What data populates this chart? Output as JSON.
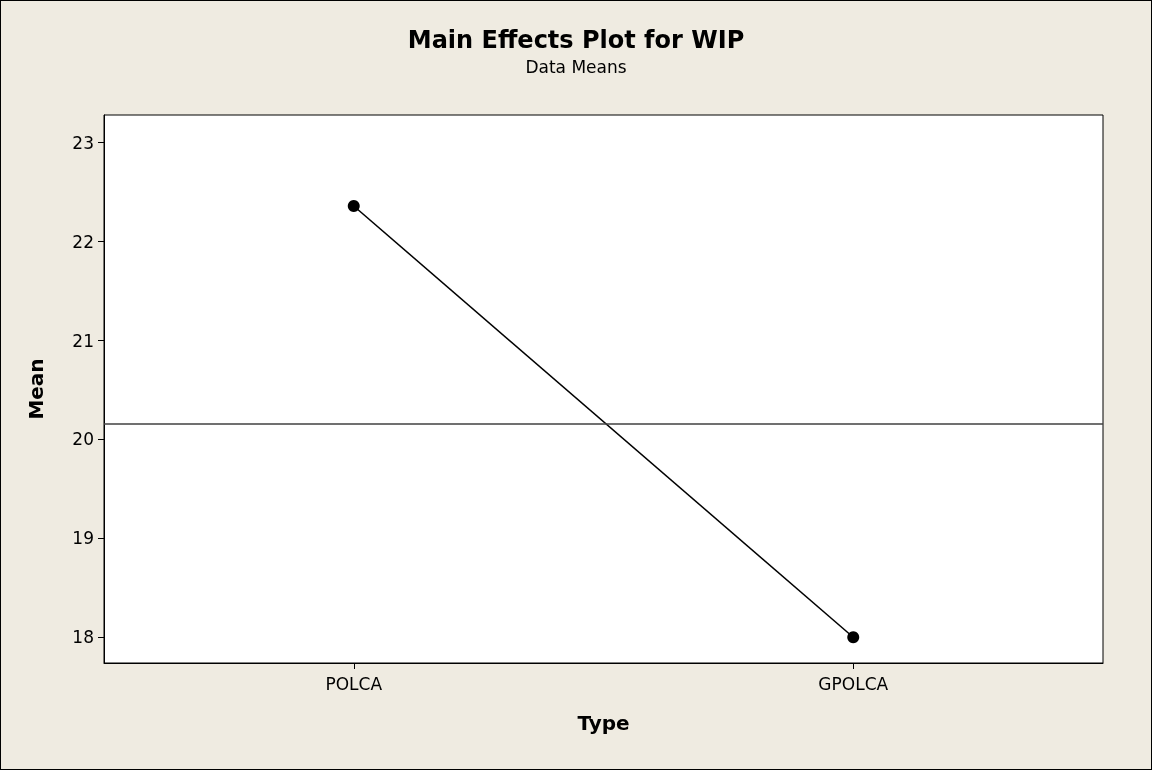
{
  "chart_data": {
    "type": "line",
    "title": "Main Effects Plot for WIP",
    "subtitle": "Data Means",
    "xlabel": "Type",
    "ylabel": "Mean",
    "categories": [
      "POLCA",
      "GPOLCA"
    ],
    "series": [
      {
        "color": "#000000",
        "values": [
          22.36,
          18.0
        ]
      }
    ],
    "ylim": [
      17.74,
      23.28
    ],
    "yticks": [
      18,
      19,
      20,
      21,
      22,
      23
    ],
    "grid": false,
    "marker": "circle",
    "line_style": "solid",
    "ref_lines": [
      {
        "axis": "y",
        "value": 20.16,
        "color": "#404040"
      }
    ]
  }
}
